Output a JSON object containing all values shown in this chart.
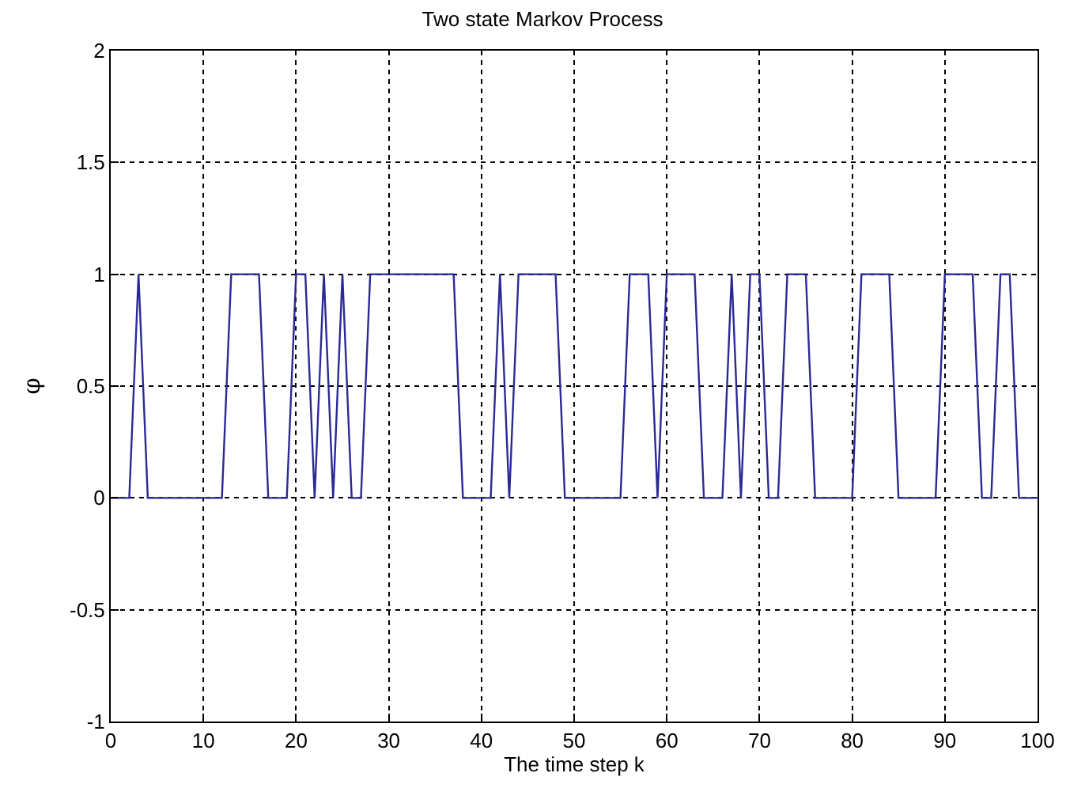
{
  "chart_data": {
    "type": "line",
    "title": "Two state Markov Process",
    "xlabel": "The time step k",
    "ylabel": "φ",
    "x": [
      0,
      1,
      2,
      3,
      4,
      5,
      6,
      7,
      8,
      9,
      10,
      11,
      12,
      13,
      14,
      15,
      16,
      17,
      18,
      19,
      20,
      21,
      22,
      23,
      24,
      25,
      26,
      27,
      28,
      29,
      30,
      31,
      32,
      33,
      34,
      35,
      36,
      37,
      38,
      39,
      40,
      41,
      42,
      43,
      44,
      45,
      46,
      47,
      48,
      49,
      50,
      51,
      52,
      53,
      54,
      55,
      56,
      57,
      58,
      59,
      60,
      61,
      62,
      63,
      64,
      65,
      66,
      67,
      68,
      69,
      70,
      71,
      72,
      73,
      74,
      75,
      76,
      77,
      78,
      79,
      80,
      81,
      82,
      83,
      84,
      85,
      86,
      87,
      88,
      89,
      90,
      91,
      92,
      93,
      94,
      95,
      96,
      97,
      98,
      99,
      100
    ],
    "series": [
      {
        "color": "#2a2a96",
        "values": [
          0,
          0,
          0,
          1,
          0,
          0,
          0,
          0,
          0,
          0,
          0,
          0,
          0,
          1,
          1,
          1,
          1,
          0,
          0,
          0,
          1,
          1,
          0,
          1,
          0,
          1,
          0,
          0,
          1,
          1,
          1,
          1,
          1,
          1,
          1,
          1,
          1,
          1,
          0,
          0,
          0,
          0,
          1,
          0,
          1,
          1,
          1,
          1,
          1,
          0,
          0,
          0,
          0,
          0,
          0,
          0,
          1,
          1,
          1,
          0,
          1,
          1,
          1,
          1,
          0,
          0,
          0,
          1,
          0,
          1,
          1,
          0,
          0,
          1,
          1,
          1,
          0,
          0,
          0,
          0,
          0,
          1,
          1,
          1,
          1,
          0,
          0,
          0,
          0,
          0,
          1,
          1,
          1,
          1,
          0,
          0,
          1,
          1,
          0,
          0,
          0
        ]
      }
    ],
    "xlim": [
      0,
      100
    ],
    "xticks": [
      0,
      10,
      20,
      30,
      40,
      50,
      60,
      70,
      80,
      90,
      100
    ],
    "ylim": [
      -1,
      2
    ],
    "yticks": [
      -1,
      -0.5,
      0,
      0.5,
      1,
      1.5,
      2
    ],
    "grid": true,
    "marker": "none",
    "line_style": "solid"
  }
}
